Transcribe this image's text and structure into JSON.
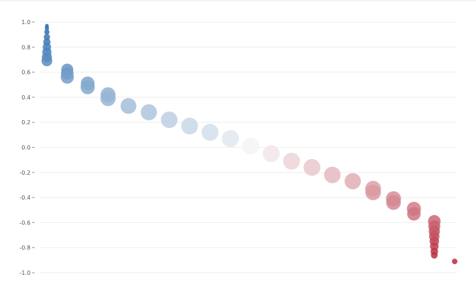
{
  "chart_data": {
    "type": "scatter",
    "title": "",
    "xlabel": "",
    "ylabel": "",
    "ylim": [
      -1.0,
      1.0
    ],
    "y_ticks": [
      {
        "value": 1.0,
        "label": "1.0"
      },
      {
        "value": 0.8,
        "label": "0.8"
      },
      {
        "value": 0.6,
        "label": "0.6"
      },
      {
        "value": 0.4,
        "label": "0.4"
      },
      {
        "value": 0.2,
        "label": "0.2"
      },
      {
        "value": 0.0,
        "label": "0.0"
      },
      {
        "value": -0.2,
        "label": "-0.2"
      },
      {
        "value": -0.4,
        "label": "-0.4"
      },
      {
        "value": -0.6,
        "label": "-0.6"
      },
      {
        "value": -0.8,
        "label": "-0.8"
      },
      {
        "value": -1.0,
        "label": "-1.0"
      }
    ],
    "grid": true,
    "color_scale": {
      "negative": "#b2182b",
      "neutral": "#f7f7f7",
      "positive": "#2166ac"
    },
    "columns": [
      {
        "index": 0,
        "values": [
          0.97,
          0.95,
          0.92,
          0.88,
          0.84,
          0.8,
          0.76,
          0.72,
          0.69
        ]
      },
      {
        "index": 1,
        "values": [
          0.62,
          0.59,
          0.56
        ]
      },
      {
        "index": 2,
        "values": [
          0.51,
          0.48
        ]
      },
      {
        "index": 3,
        "values": [
          0.42,
          0.39
        ]
      },
      {
        "index": 4,
        "values": [
          0.33
        ]
      },
      {
        "index": 5,
        "values": [
          0.28
        ]
      },
      {
        "index": 6,
        "values": [
          0.22
        ]
      },
      {
        "index": 7,
        "values": [
          0.17
        ]
      },
      {
        "index": 8,
        "values": [
          0.12
        ]
      },
      {
        "index": 9,
        "values": [
          0.07
        ]
      },
      {
        "index": 10,
        "values": [
          0.01
        ]
      },
      {
        "index": 11,
        "values": [
          -0.05
        ]
      },
      {
        "index": 12,
        "values": [
          -0.11
        ]
      },
      {
        "index": 13,
        "values": [
          -0.16
        ]
      },
      {
        "index": 14,
        "values": [
          -0.22
        ]
      },
      {
        "index": 15,
        "values": [
          -0.27
        ]
      },
      {
        "index": 16,
        "values": [
          -0.33,
          -0.36
        ]
      },
      {
        "index": 17,
        "values": [
          -0.41,
          -0.44
        ]
      },
      {
        "index": 18,
        "values": [
          -0.49,
          -0.53
        ]
      },
      {
        "index": 19,
        "values": [
          -0.59,
          -0.63,
          -0.67,
          -0.71,
          -0.75,
          -0.79,
          -0.83,
          -0.86
        ]
      },
      {
        "index": 20,
        "values": [
          -0.91
        ]
      }
    ]
  }
}
